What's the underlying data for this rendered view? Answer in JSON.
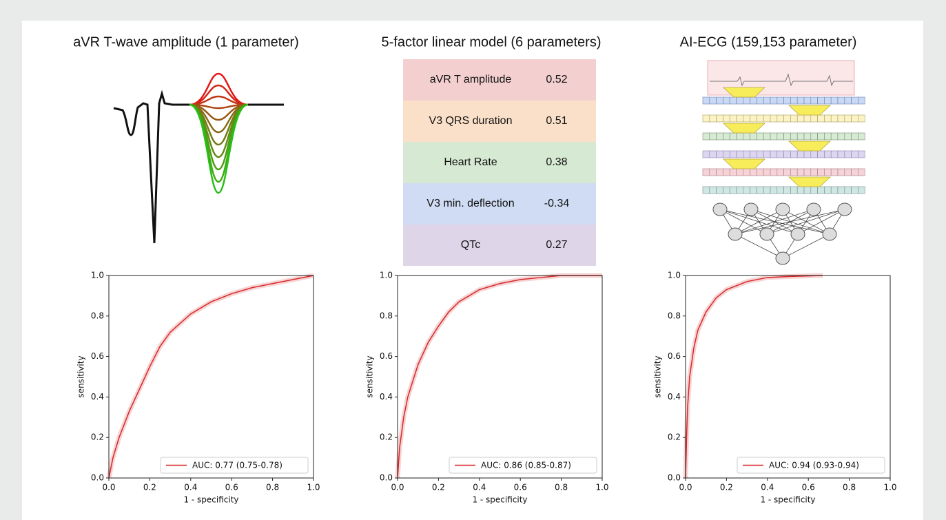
{
  "titles": [
    "aVR T-wave amplitude (1 parameter)",
    "5-factor linear model (6 parameters)",
    "AI-ECG (159,153 parameter)"
  ],
  "table": {
    "rows": [
      [
        "aVR T amplitude",
        0.52
      ],
      [
        "V3 QRS duration",
        0.51
      ],
      [
        "Heart Rate",
        0.38
      ],
      [
        "V3 min. deflection",
        -0.34
      ],
      [
        "QTc",
        0.27
      ]
    ]
  },
  "chart_data": [
    {
      "type": "line",
      "xlabel": "1 - specificity",
      "ylabel": "sensitivity",
      "legend": "lower right",
      "xlim": [
        0,
        1
      ],
      "ylim": [
        0,
        1
      ],
      "xticks": [
        {
          "value": 0,
          "label": "0.0"
        },
        0.2,
        0.4,
        0.6,
        0.8,
        {
          "value": 1,
          "label": "1.0"
        }
      ],
      "yticks": [
        {
          "value": 0,
          "label": "0.0"
        },
        0.2,
        0.4,
        0.6,
        0.8,
        {
          "value": 1,
          "label": "1.0"
        }
      ],
      "x": [
        0,
        0.02,
        0.05,
        0.1,
        0.15,
        0.2,
        0.25,
        0.3,
        0.4,
        0.5,
        0.6,
        0.7,
        0.8,
        0.9,
        1.0
      ],
      "series": [
        {
          "name": "AUC: 0.77 (0.75-0.78)",
          "color": "#d62728",
          "values": [
            0,
            0.1,
            0.2,
            0.33,
            0.44,
            0.55,
            0.65,
            0.72,
            0.81,
            0.87,
            0.91,
            0.94,
            0.96,
            0.98,
            1.0
          ]
        }
      ]
    },
    {
      "type": "line",
      "xlabel": "1 - specificity",
      "ylabel": "sensitivity",
      "legend": "lower right",
      "xlim": [
        0,
        1
      ],
      "ylim": [
        0,
        1
      ],
      "xticks": [
        {
          "value": 0,
          "label": "0.0"
        },
        0.2,
        0.4,
        0.6,
        0.8,
        {
          "value": 1,
          "label": "1.0"
        }
      ],
      "yticks": [
        {
          "value": 0,
          "label": "0.0"
        },
        0.2,
        0.4,
        0.6,
        0.8,
        {
          "value": 1,
          "label": "1.0"
        }
      ],
      "x": [
        0,
        0.01,
        0.03,
        0.05,
        0.1,
        0.15,
        0.2,
        0.25,
        0.3,
        0.4,
        0.5,
        0.6,
        0.7,
        0.8,
        1.0
      ],
      "series": [
        {
          "name": "AUC: 0.86 (0.85-0.87)",
          "color": "#d62728",
          "values": [
            0,
            0.15,
            0.3,
            0.4,
            0.56,
            0.67,
            0.75,
            0.82,
            0.87,
            0.93,
            0.96,
            0.98,
            0.99,
            1.0,
            1.0
          ]
        }
      ]
    },
    {
      "type": "line",
      "xlabel": "1 - specificity",
      "ylabel": "sensitivity",
      "legend": "lower right",
      "xlim": [
        0,
        1
      ],
      "ylim": [
        0,
        1
      ],
      "xticks": [
        {
          "value": 0,
          "label": "0.0"
        },
        0.2,
        0.4,
        0.6,
        0.8,
        {
          "value": 1,
          "label": "1.0"
        }
      ],
      "yticks": [
        {
          "value": 0,
          "label": "0.0"
        },
        0.2,
        0.4,
        0.6,
        0.8,
        {
          "value": 1,
          "label": "1.0"
        }
      ],
      "x": [
        0,
        0.005,
        0.01,
        0.02,
        0.04,
        0.06,
        0.1,
        0.15,
        0.2,
        0.3,
        0.4,
        0.5,
        0.67
      ],
      "series": [
        {
          "name": "AUC: 0.94 (0.93-0.94)",
          "color": "#d62728",
          "values": [
            0,
            0.2,
            0.35,
            0.5,
            0.64,
            0.73,
            0.82,
            0.89,
            0.93,
            0.97,
            0.99,
            0.995,
            1.0
          ]
        }
      ]
    }
  ]
}
